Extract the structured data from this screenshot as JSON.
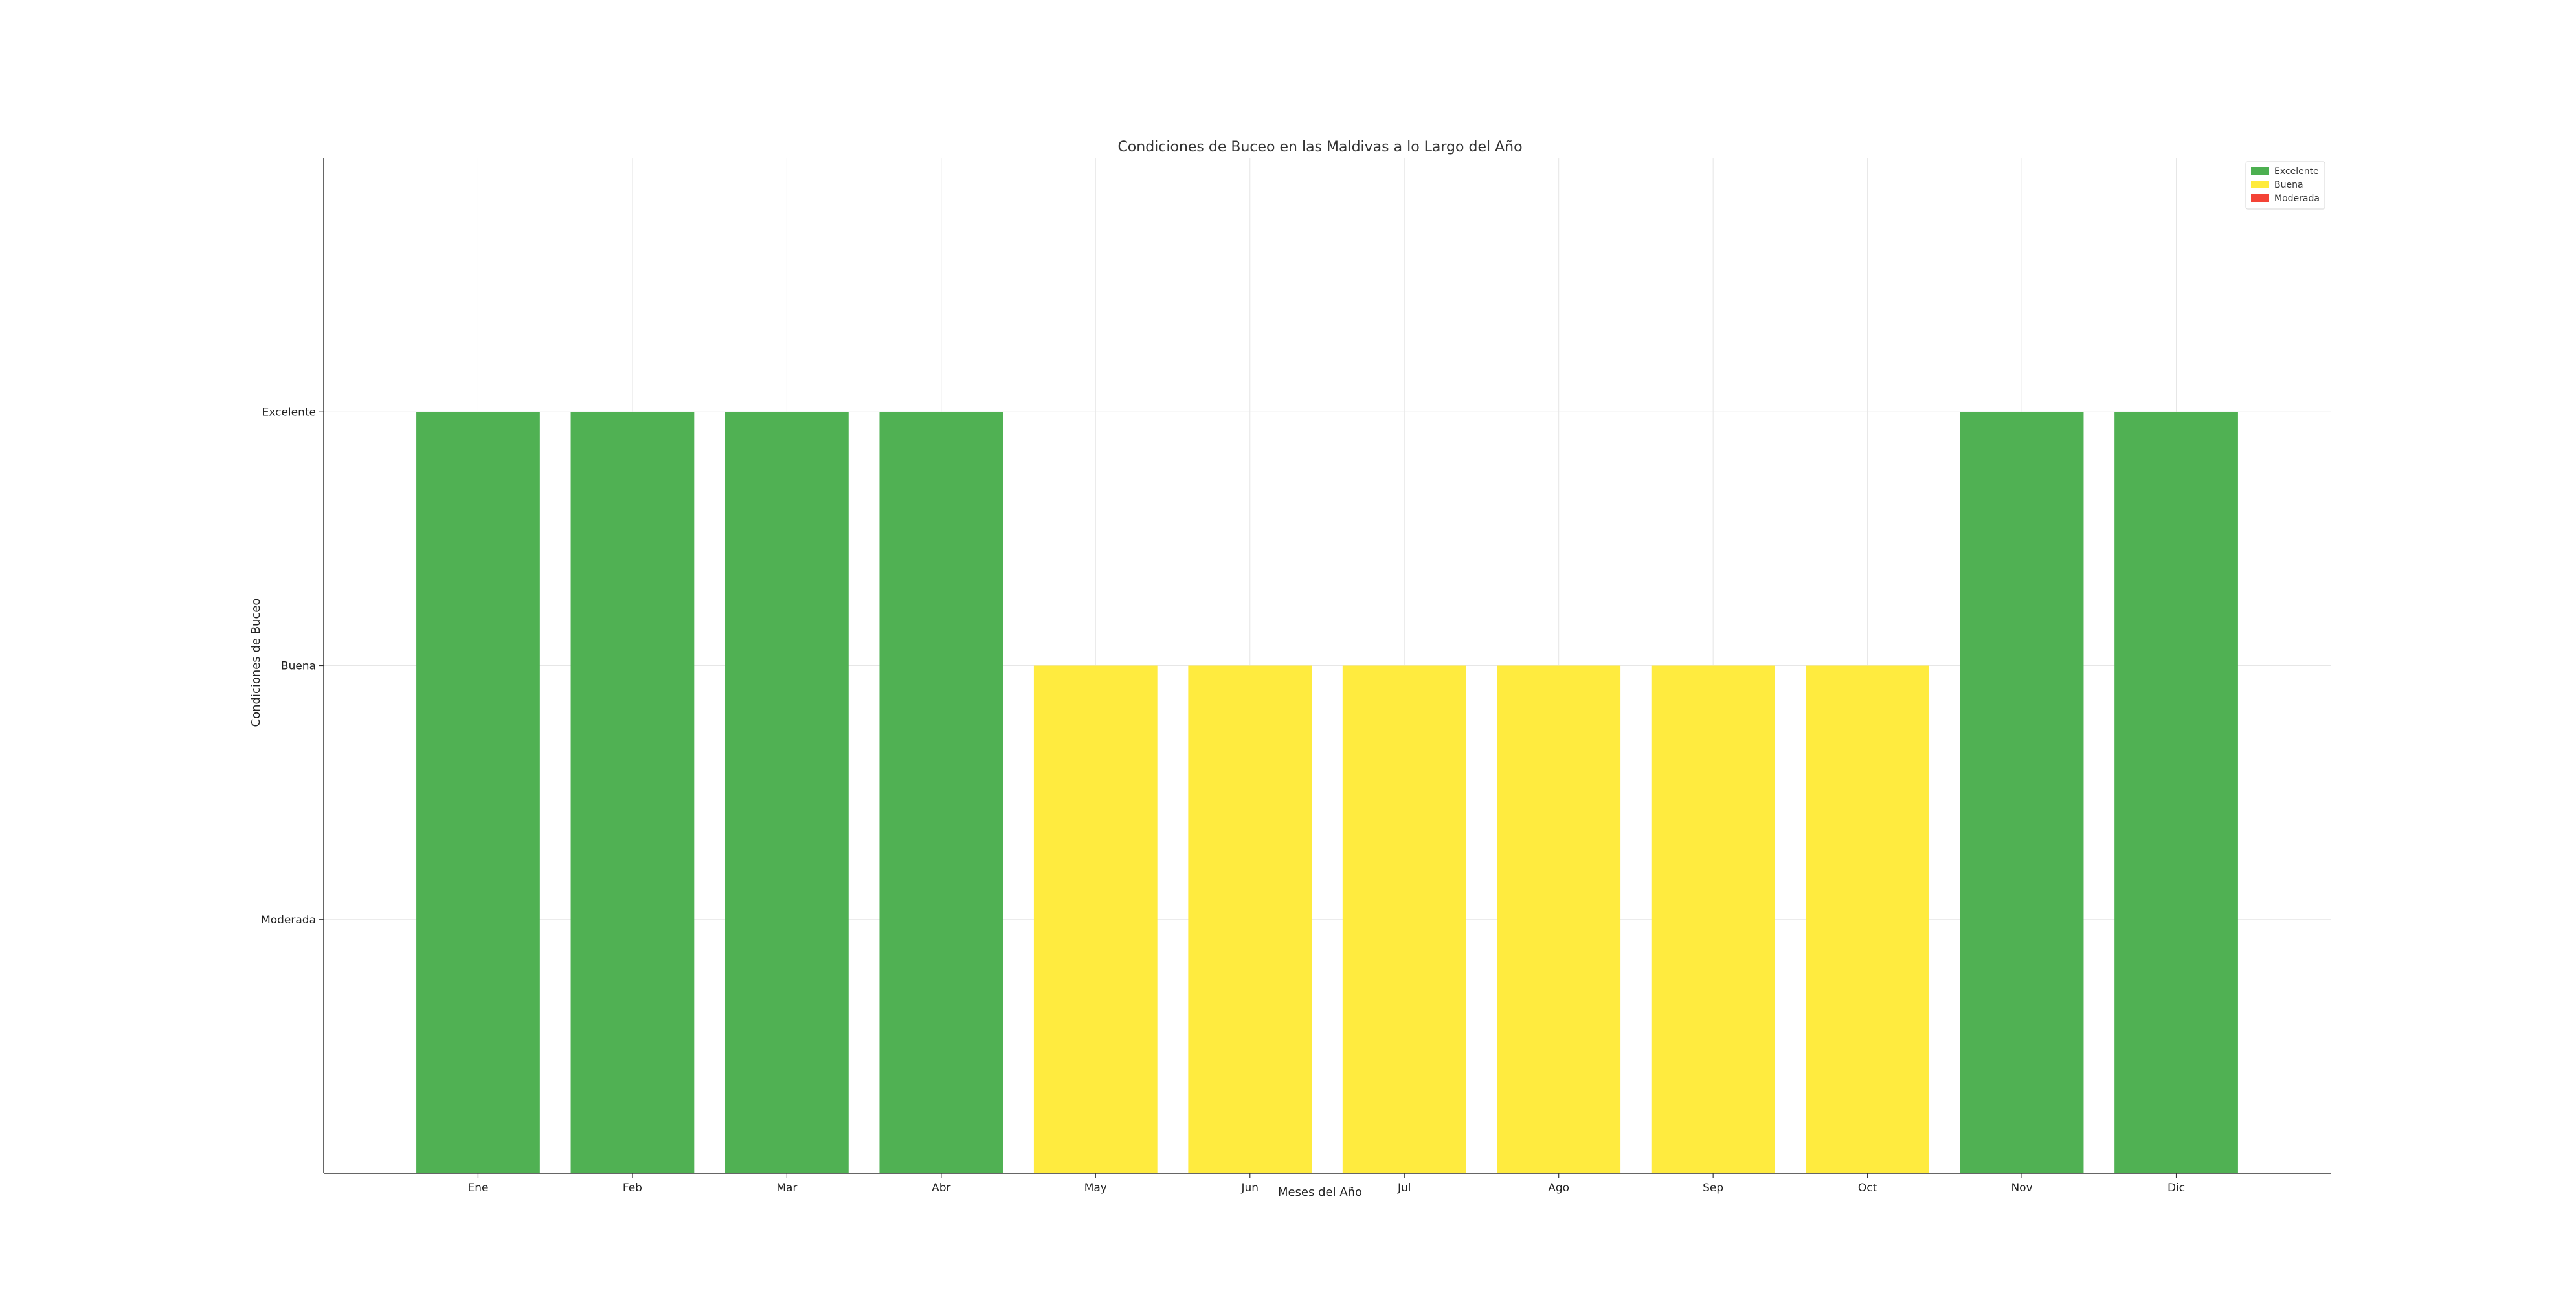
{
  "chart_data": {
    "type": "bar",
    "title": "Condiciones de Buceo en las Maldivas a lo Largo del Año",
    "xlabel": "Meses del Año",
    "ylabel": "Condiciones de Buceo",
    "categories": [
      "Ene",
      "Feb",
      "Mar",
      "Abr",
      "May",
      "Jun",
      "Jul",
      "Ago",
      "Sep",
      "Oct",
      "Nov",
      "Dic"
    ],
    "values": [
      3,
      3,
      3,
      3,
      2,
      2,
      2,
      2,
      2,
      2,
      3,
      3
    ],
    "conditions": [
      "Excelente",
      "Excelente",
      "Excelente",
      "Excelente",
      "Buena",
      "Buena",
      "Buena",
      "Buena",
      "Buena",
      "Buena",
      "Excelente",
      "Excelente"
    ],
    "ylim": [
      0,
      4
    ],
    "yticks": [
      {
        "value": 1,
        "label": "Moderada"
      },
      {
        "value": 2,
        "label": "Buena"
      },
      {
        "value": 3,
        "label": "Excelente"
      }
    ],
    "grid": true,
    "legend": {
      "placement": "top-right",
      "entries": [
        {
          "label": "Excelente",
          "color": "#4caf50"
        },
        {
          "label": "Buena",
          "color": "#ffeb3b"
        },
        {
          "label": "Moderada",
          "color": "#f44336"
        }
      ]
    },
    "colors": {
      "Excelente": "#4caf50",
      "Buena": "#ffeb3b",
      "Moderada": "#f44336"
    }
  }
}
